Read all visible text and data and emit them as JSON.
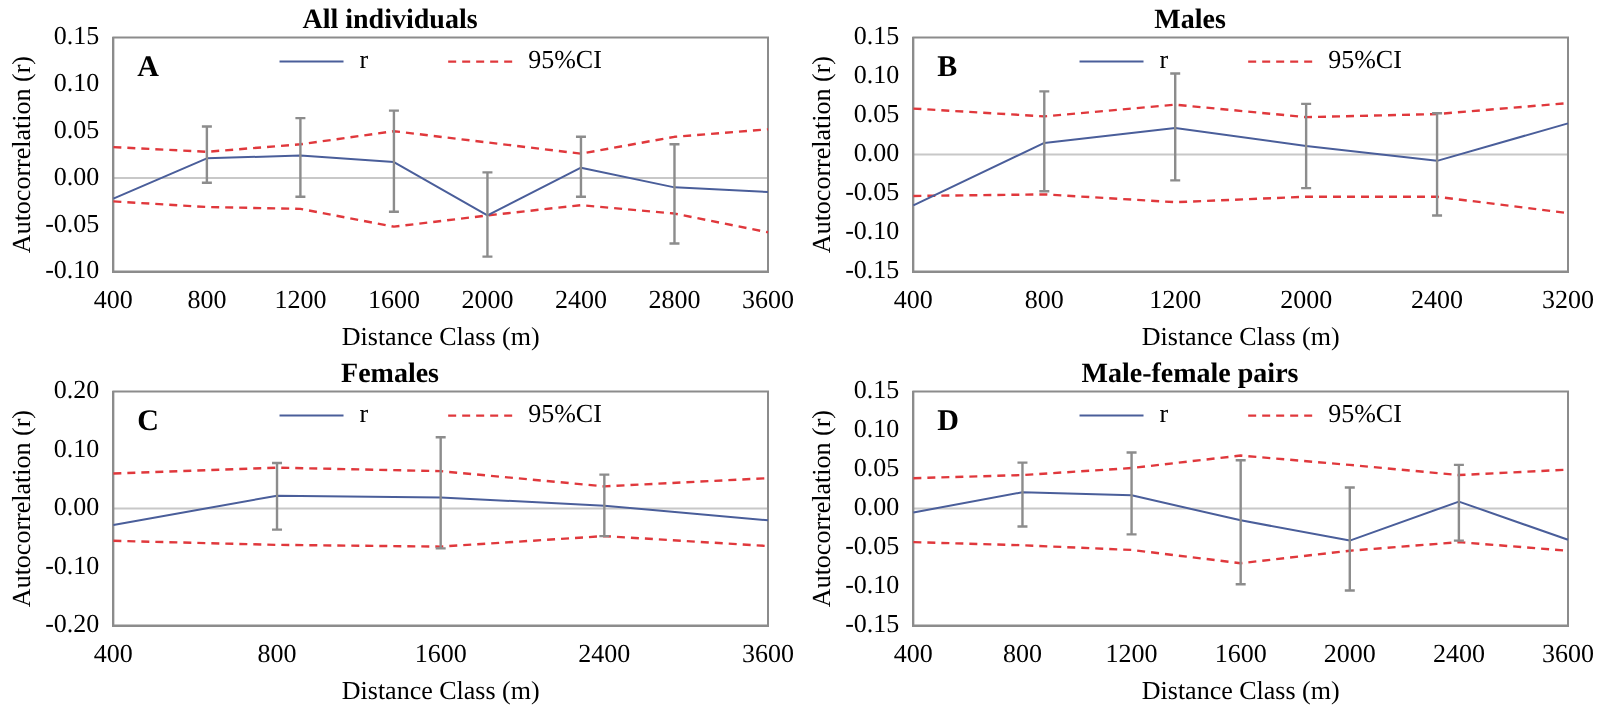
{
  "chart_data": [
    {
      "type": "line",
      "title": "All individuals",
      "xlabel": "Distance Class (m)",
      "ylabel": "Autocorrelation (r)",
      "annotations": [
        "A"
      ],
      "categories": [
        "400",
        "800",
        "1200",
        "1600",
        "2000",
        "2400",
        "2800",
        "3600"
      ],
      "ylim": [
        -0.1,
        0.15
      ],
      "yticks": [
        {
          "value": -0.1,
          "label": "-0.10"
        },
        {
          "value": -0.05,
          "label": "-0.05"
        },
        {
          "value": 0,
          "label": "0.00"
        },
        {
          "value": 0.05,
          "label": "0.05"
        },
        {
          "value": 0.1,
          "label": "0.10"
        },
        {
          "value": 0.15,
          "label": "0.15"
        }
      ],
      "legend": "top",
      "marker": "none",
      "grid": false,
      "ref_lines": [
        {
          "axis": "y",
          "value": 0,
          "color": "#c8c8c8"
        }
      ],
      "series": [
        {
          "name": "r",
          "color": "#4a5e9a",
          "line_style": "solid",
          "values": [
            -0.022,
            0.021,
            0.024,
            0.017,
            -0.04,
            0.011,
            -0.01,
            -0.015
          ],
          "errors": [
            null,
            [
              -0.005,
              0.055
            ],
            [
              -0.02,
              0.064
            ],
            [
              -0.036,
              0.072
            ],
            [
              -0.084,
              0.006
            ],
            [
              -0.02,
              0.044
            ],
            [
              -0.07,
              0.036
            ],
            null
          ]
        },
        {
          "name": "95%CI",
          "color": "#e0383c",
          "line_style": "dashed",
          "values": [
            0.033,
            0.028,
            0.036,
            0.05,
            0.038,
            0.026,
            0.044,
            0.052
          ]
        },
        {
          "color": "#e0383c",
          "line_style": "dashed",
          "values": [
            -0.025,
            -0.031,
            -0.033,
            -0.052,
            -0.04,
            -0.029,
            -0.038,
            -0.058
          ]
        }
      ]
    },
    {
      "type": "line",
      "title": "Males",
      "xlabel": "Distance Class (m)",
      "ylabel": "Autocorrelation (r)",
      "annotations": [
        "B"
      ],
      "categories": [
        "400",
        "800",
        "1200",
        "2000",
        "2400",
        "3200"
      ],
      "ylim": [
        -0.15,
        0.15
      ],
      "yticks": [
        {
          "value": -0.15,
          "label": "-0.15"
        },
        {
          "value": -0.1,
          "label": "-0.10"
        },
        {
          "value": -0.05,
          "label": "-0.05"
        },
        {
          "value": 0,
          "label": "0.00"
        },
        {
          "value": 0.05,
          "label": "0.05"
        },
        {
          "value": 0.1,
          "label": "0.10"
        },
        {
          "value": 0.15,
          "label": "0.15"
        }
      ],
      "legend": "top",
      "marker": "none",
      "grid": false,
      "ref_lines": [
        {
          "axis": "y",
          "value": 0,
          "color": "#c8c8c8"
        }
      ],
      "series": [
        {
          "name": "r",
          "color": "#4a5e9a",
          "line_style": "solid",
          "values": [
            -0.065,
            0.015,
            0.034,
            0.011,
            -0.008,
            0.04
          ],
          "errors": [
            null,
            [
              -0.047,
              0.081
            ],
            [
              -0.033,
              0.104
            ],
            [
              -0.043,
              0.065
            ],
            [
              -0.078,
              0.053
            ],
            null
          ]
        },
        {
          "name": "95%CI",
          "color": "#e0383c",
          "line_style": "dashed",
          "values": [
            0.059,
            0.049,
            0.064,
            0.048,
            0.052,
            0.066
          ]
        },
        {
          "color": "#e0383c",
          "line_style": "dashed",
          "values": [
            -0.053,
            -0.051,
            -0.061,
            -0.054,
            -0.054,
            -0.075
          ]
        }
      ]
    },
    {
      "type": "line",
      "title": "Females",
      "xlabel": "Distance Class (m)",
      "ylabel": "Autocorrelation (r)",
      "annotations": [
        "C"
      ],
      "categories": [
        "400",
        "800",
        "1600",
        "2400",
        "3600"
      ],
      "ylim": [
        -0.2,
        0.2
      ],
      "yticks": [
        {
          "value": -0.2,
          "label": "-0.20"
        },
        {
          "value": -0.1,
          "label": "-0.10"
        },
        {
          "value": 0,
          "label": "0.00"
        },
        {
          "value": 0.1,
          "label": "0.10"
        },
        {
          "value": 0.2,
          "label": "0.20"
        }
      ],
      "legend": "top",
      "marker": "none",
      "grid": false,
      "ref_lines": [
        {
          "axis": "y",
          "value": 0,
          "color": "#c8c8c8"
        }
      ],
      "series": [
        {
          "name": "r",
          "color": "#4a5e9a",
          "line_style": "solid",
          "values": [
            -0.028,
            0.022,
            0.019,
            0.005,
            -0.02
          ],
          "errors": [
            null,
            [
              -0.036,
              0.078
            ],
            [
              -0.068,
              0.122
            ],
            [
              -0.047,
              0.058
            ],
            null
          ]
        },
        {
          "name": "95%CI",
          "color": "#e0383c",
          "line_style": "dashed",
          "values": [
            0.06,
            0.07,
            0.064,
            0.038,
            0.052
          ]
        },
        {
          "color": "#e0383c",
          "line_style": "dashed",
          "values": [
            -0.055,
            -0.062,
            -0.065,
            -0.047,
            -0.064
          ]
        }
      ]
    },
    {
      "type": "line",
      "title": "Male-female pairs",
      "xlabel": "Distance Class (m)",
      "ylabel": "Autocorrelation (r)",
      "annotations": [
        "D"
      ],
      "categories": [
        "400",
        "800",
        "1200",
        "1600",
        "2000",
        "2400",
        "3600"
      ],
      "ylim": [
        -0.15,
        0.15
      ],
      "yticks": [
        {
          "value": -0.15,
          "label": "-0.15"
        },
        {
          "value": -0.1,
          "label": "-0.10"
        },
        {
          "value": -0.05,
          "label": "-0.05"
        },
        {
          "value": 0,
          "label": "0.00"
        },
        {
          "value": 0.05,
          "label": "0.05"
        },
        {
          "value": 0.1,
          "label": "0.10"
        },
        {
          "value": 0.15,
          "label": "0.15"
        }
      ],
      "legend": "top",
      "marker": "none",
      "grid": false,
      "ref_lines": [
        {
          "axis": "y",
          "value": 0,
          "color": "#c8c8c8"
        }
      ],
      "series": [
        {
          "name": "r",
          "color": "#4a5e9a",
          "line_style": "solid",
          "values": [
            -0.005,
            0.021,
            0.017,
            -0.015,
            -0.041,
            0.009,
            -0.04
          ],
          "errors": [
            null,
            [
              -0.023,
              0.059
            ],
            [
              -0.033,
              0.072
            ],
            [
              -0.097,
              0.062
            ],
            [
              -0.105,
              0.027
            ],
            [
              -0.041,
              0.056
            ],
            null
          ]
        },
        {
          "name": "95%CI",
          "color": "#e0383c",
          "line_style": "dashed",
          "values": [
            0.039,
            0.043,
            0.052,
            0.068,
            0.056,
            0.043,
            0.05
          ]
        },
        {
          "color": "#e0383c",
          "line_style": "dashed",
          "values": [
            -0.043,
            -0.047,
            -0.053,
            -0.07,
            -0.054,
            -0.043,
            -0.054
          ]
        }
      ]
    }
  ]
}
